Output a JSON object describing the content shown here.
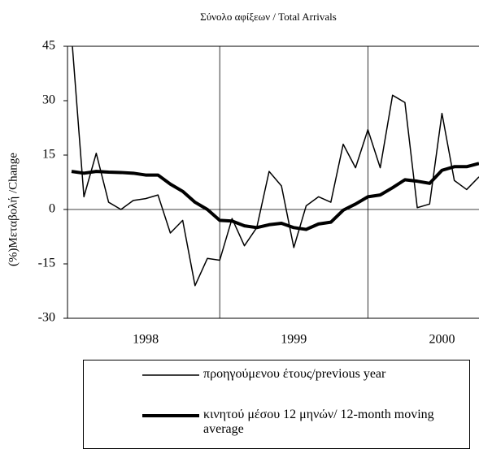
{
  "chart_data": {
    "type": "line",
    "title": "Σύνολο αφίξεων / Total Arrivals",
    "y_label": "(%)Μεταβολή /Change",
    "categories": [
      null,
      null,
      null,
      null,
      null,
      null,
      "1998",
      null,
      null,
      null,
      null,
      null,
      null,
      null,
      null,
      null,
      null,
      null,
      "1999",
      null,
      null,
      null,
      null,
      null,
      null,
      null,
      null,
      null,
      null,
      null,
      "2000",
      null,
      null,
      null
    ],
    "series": [
      {
        "name": "προηγούμενου έτους/previous year",
        "color": "#000000",
        "width": 1.5,
        "values": [
          48,
          3.5,
          15.5,
          2,
          0,
          2.5,
          3,
          4,
          -6.5,
          -3,
          -21,
          -13.5,
          -14,
          -2.5,
          -10,
          -5,
          10.5,
          6.5,
          -10.5,
          1,
          3.5,
          2,
          18,
          11.5,
          22,
          11.5,
          31.5,
          29.5,
          0.5,
          1.5,
          26.5,
          8,
          5.5,
          9
        ]
      },
      {
        "name": "κινητού μέσου 12 μηνών/ 12-month moving average",
        "color": "#000000",
        "width": 4,
        "values": [
          10.5,
          10,
          10.5,
          10.3,
          10.2,
          10,
          9.5,
          9.5,
          7,
          5,
          2,
          0,
          -3,
          -3.2,
          -4.5,
          -5,
          -4.2,
          -3.8,
          -5,
          -5.5,
          -4,
          -3.5,
          -0.2,
          1.5,
          3.5,
          4,
          6,
          8.2,
          7.8,
          7.2,
          10.8,
          11.8,
          11.8,
          12.7
        ]
      }
    ],
    "ylim": [
      -30,
      45
    ],
    "yticks": [
      -30,
      -15,
      0,
      15,
      30,
      45
    ]
  }
}
